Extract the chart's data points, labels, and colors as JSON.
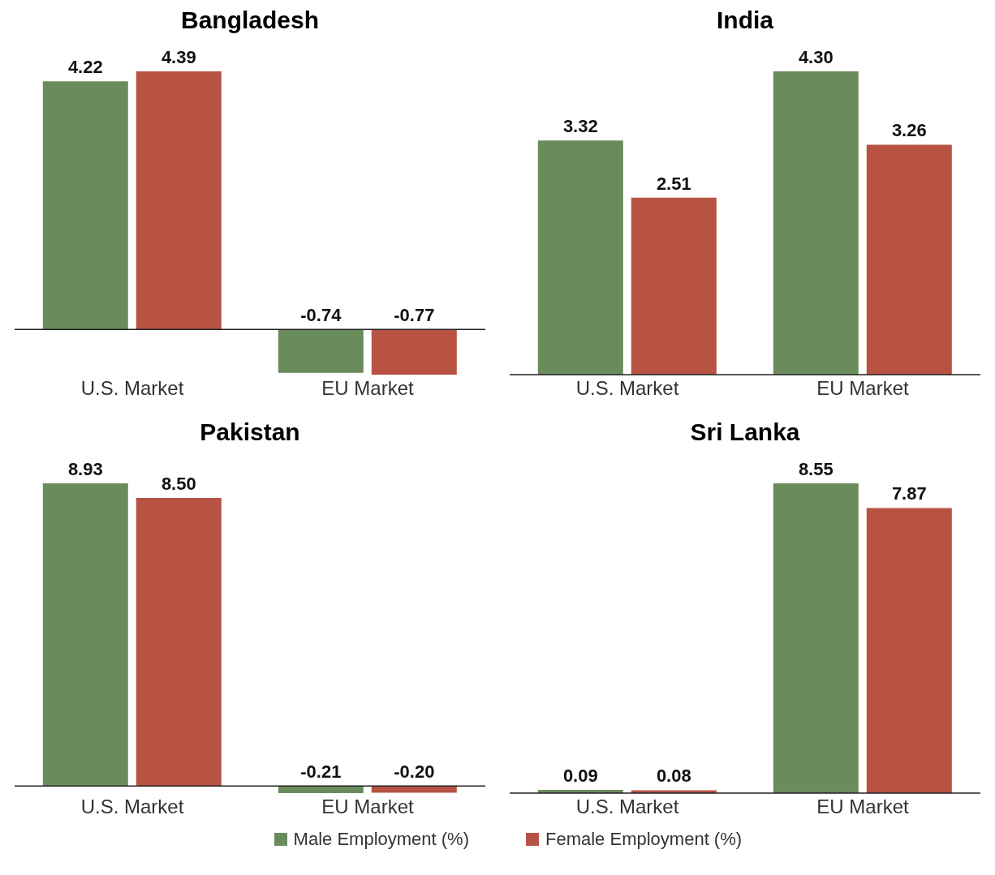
{
  "chart_data": [
    {
      "type": "bar",
      "title": "Bangladesh",
      "categories": [
        "U.S. Market",
        "EU Market"
      ],
      "series": [
        {
          "color": "#6a8c5c",
          "values": [
            4.22,
            -0.74
          ],
          "value_labels": [
            "4.22",
            "-0.74"
          ]
        },
        {
          "color": "#b85243",
          "values": [
            4.39,
            -0.77
          ],
          "value_labels": [
            "4.39",
            "-0.77"
          ]
        }
      ],
      "tick_labels": "x"
    },
    {
      "type": "bar",
      "title": "India",
      "categories": [
        "U.S. Market",
        "EU Market"
      ],
      "series": [
        {
          "color": "#6a8c5c",
          "values": [
            3.32,
            4.3
          ],
          "value_labels": [
            "3.32",
            "4.30"
          ]
        },
        {
          "color": "#b85243",
          "values": [
            2.51,
            3.26
          ],
          "value_labels": [
            "2.51",
            "3.26"
          ]
        }
      ],
      "tick_labels": "x"
    },
    {
      "type": "bar",
      "title": "Pakistan",
      "categories": [
        "U.S. Market",
        "EU Market"
      ],
      "series": [
        {
          "name": "Male Employment (%)",
          "color": "#6a8c5c",
          "values": [
            8.93,
            -0.21
          ],
          "value_labels": [
            "8.93",
            "-0.21"
          ]
        },
        {
          "color": "#b85243",
          "values": [
            8.5,
            -0.2
          ],
          "value_labels": [
            "8.50",
            "-0.20"
          ]
        }
      ],
      "tick_labels": "x",
      "legend": "bottom right"
    },
    {
      "type": "bar",
      "title": "Sri Lanka",
      "categories": [
        "U.S. Market",
        "EU Market"
      ],
      "series": [
        {
          "color": "#6a8c5c",
          "values": [
            0.09,
            8.55
          ],
          "value_labels": [
            "0.09",
            "8.55"
          ]
        },
        {
          "name": "Female Employment (%)",
          "color": "#b85243",
          "values": [
            0.08,
            7.87
          ],
          "value_labels": [
            "0.08",
            "7.87"
          ]
        }
      ],
      "tick_labels": "x",
      "legend": "bottom left"
    }
  ]
}
